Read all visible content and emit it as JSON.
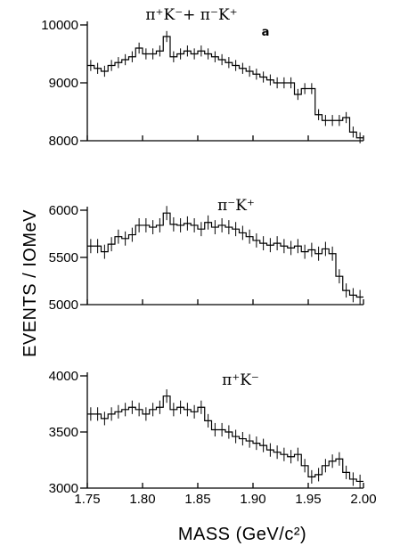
{
  "chart_data": [
    {
      "type": "line",
      "title": "π⁺K⁻+ π⁻K⁺",
      "corner_mark": "a",
      "ylim": [
        8000,
        10000
      ],
      "yticks": [
        8000,
        9000,
        10000
      ],
      "ytick_labels": [
        "8000",
        "9000",
        "10000"
      ],
      "xlim": [
        1.75,
        2.0
      ],
      "series": [
        {
          "values": [
            9300,
            9250,
            9200,
            9300,
            9350,
            9400,
            9450,
            9600,
            9500,
            9500,
            9550,
            9800,
            9450,
            9500,
            9550,
            9500,
            9550,
            9500,
            9450,
            9400,
            9350,
            9300,
            9250,
            9200,
            9150,
            9100,
            9050,
            9000,
            9000,
            9000,
            8800,
            8900,
            8900,
            8450,
            8350,
            8350,
            8350,
            8400,
            8150,
            8050
          ],
          "errors": [
            95,
            95,
            95,
            95,
            95,
            95,
            95,
            95,
            95,
            95,
            95,
            95,
            95,
            95,
            95,
            95,
            95,
            95,
            95,
            95,
            95,
            95,
            95,
            95,
            95,
            95,
            95,
            95,
            95,
            95,
            95,
            95,
            95,
            95,
            95,
            95,
            95,
            95,
            95,
            95
          ]
        }
      ]
    },
    {
      "type": "line",
      "title": "π⁻K⁺",
      "ylim": [
        5000,
        6000
      ],
      "yticks": [
        5000,
        5500,
        6000
      ],
      "ytick_labels": [
        "5000",
        "5500",
        "6000"
      ],
      "xlim": [
        1.75,
        2.0
      ],
      "series": [
        {
          "values": [
            5620,
            5620,
            5560,
            5640,
            5720,
            5700,
            5740,
            5840,
            5840,
            5820,
            5840,
            5970,
            5850,
            5840,
            5860,
            5840,
            5800,
            5870,
            5820,
            5840,
            5820,
            5800,
            5760,
            5720,
            5680,
            5650,
            5630,
            5650,
            5620,
            5600,
            5620,
            5560,
            5580,
            5540,
            5590,
            5540,
            5300,
            5150,
            5100,
            5080
          ],
          "errors": [
            75,
            75,
            75,
            75,
            75,
            75,
            75,
            75,
            75,
            75,
            75,
            75,
            75,
            75,
            75,
            75,
            75,
            75,
            75,
            75,
            75,
            75,
            75,
            75,
            75,
            75,
            75,
            75,
            75,
            75,
            75,
            75,
            75,
            75,
            75,
            75,
            75,
            75,
            75,
            75
          ]
        }
      ]
    },
    {
      "type": "line",
      "title": "π⁺K⁻",
      "ylim": [
        3000,
        4000
      ],
      "yticks": [
        3000,
        3500,
        4000
      ],
      "ytick_labels": [
        "3000",
        "3500",
        "4000"
      ],
      "xlim": [
        1.75,
        2.0
      ],
      "xticks": [
        1.75,
        1.8,
        1.85,
        1.9,
        1.95,
        2.0
      ],
      "xtick_labels": [
        "1.75",
        "1.80",
        "1.85",
        "1.90",
        "1.95",
        "2.00"
      ],
      "series": [
        {
          "values": [
            3660,
            3660,
            3620,
            3660,
            3680,
            3700,
            3720,
            3700,
            3660,
            3700,
            3720,
            3820,
            3700,
            3720,
            3700,
            3680,
            3720,
            3600,
            3520,
            3520,
            3500,
            3460,
            3440,
            3420,
            3400,
            3380,
            3340,
            3320,
            3300,
            3280,
            3300,
            3200,
            3100,
            3120,
            3200,
            3240,
            3260,
            3140,
            3080,
            3060
          ],
          "errors": [
            60,
            60,
            60,
            60,
            60,
            60,
            60,
            60,
            60,
            60,
            60,
            60,
            60,
            60,
            60,
            60,
            60,
            60,
            60,
            60,
            60,
            60,
            60,
            60,
            60,
            60,
            60,
            60,
            60,
            60,
            60,
            60,
            60,
            60,
            60,
            60,
            60,
            60,
            60,
            60
          ]
        }
      ]
    }
  ],
  "ylabel": "EVENTS / IOMeV",
  "xlabel": "MASS (GeV/c²)"
}
